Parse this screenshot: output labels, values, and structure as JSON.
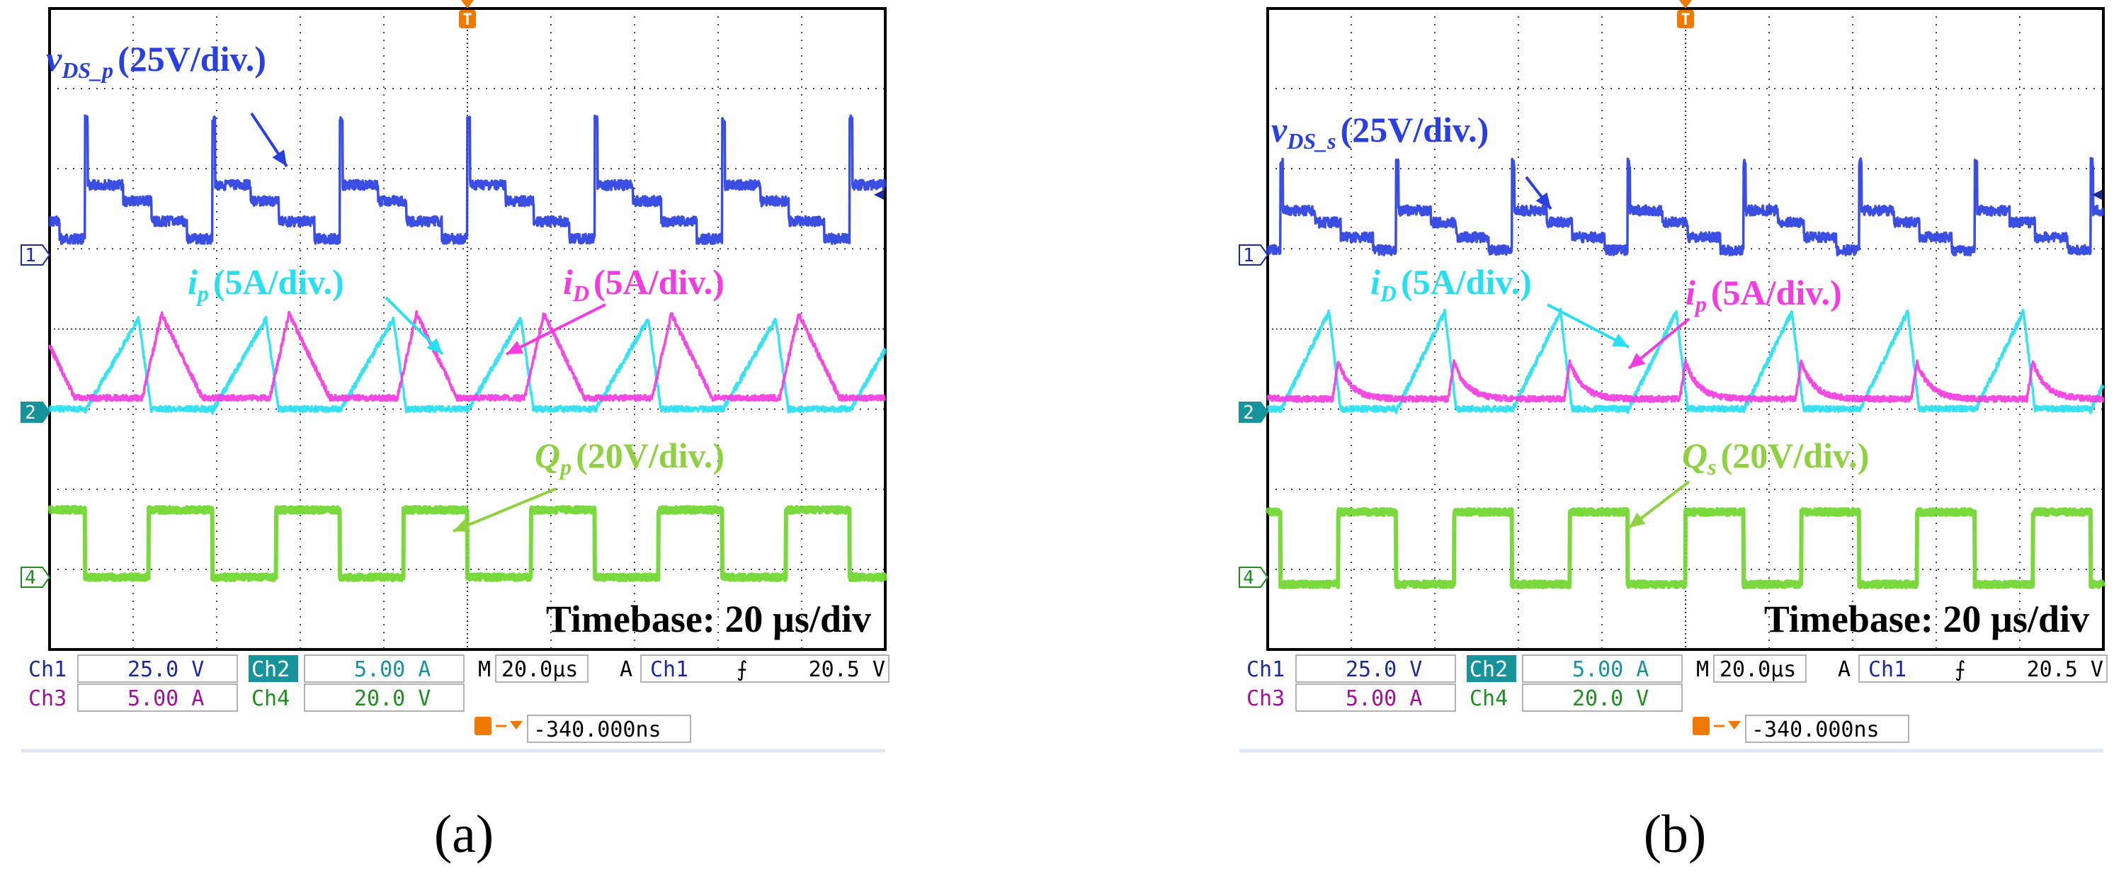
{
  "colors": {
    "ch1": "#2a3fe0",
    "ch_cyan": "#27dff0",
    "ch_magenta": "#f23be0",
    "ch4": "#6fd62c",
    "label_green": "#8fd141",
    "status_ch1": "#1d2a9c",
    "status_ch2": "#17949b",
    "status_ch3": "#a0109a",
    "status_ch4": "#1e8f1e",
    "trigger": "#f07a00",
    "grid": "#000000"
  },
  "chart_data": [
    {
      "type": "line",
      "panel_label": "(a)",
      "timebase_label": "Timebase: 20 µs/div",
      "x_axis": {
        "unit": "µs",
        "range": [
          -100,
          100
        ],
        "divisions": 10,
        "per_div": 20
      },
      "series": [
        {
          "name": "v_DS_p",
          "label_main": "v",
          "label_sub": "DS_p",
          "label_scale": "(25V/div.)",
          "channel": 1,
          "color": "#2a3fe0",
          "scale": "25V/div",
          "waveform": "drain_voltage",
          "period_us": 30.5,
          "duty": 0.5,
          "phase": 0.0
        },
        {
          "name": "i_p",
          "label_main": "i",
          "label_sub": "p",
          "label_scale": "(5A/div.)",
          "channel": 2,
          "color": "#27dff0",
          "scale": "5A/div",
          "waveform": "ramp_current",
          "period_us": 30.5,
          "duty": 0.5,
          "phase": 0.0
        },
        {
          "name": "i_D",
          "label_main": "i",
          "label_sub": "D",
          "label_scale": "(5A/div.)",
          "channel": 3,
          "color": "#f23be0",
          "scale": "5A/div",
          "waveform": "triangle_current",
          "period_us": 30.5,
          "duty": 0.5,
          "phase": 0.0
        },
        {
          "name": "Q_p",
          "label_main": "Q",
          "label_sub": "p",
          "label_scale": "(20V/div.)",
          "channel": 4,
          "color": "#6fd62c",
          "scale": "20V/div",
          "waveform": "gate_pulse",
          "period_us": 30.5,
          "duty": 0.5,
          "phase": 0.0
        }
      ],
      "status": {
        "ch1_label": "Ch1",
        "ch1_value": "25.0 V",
        "ch2_label": "Ch2",
        "ch2_value": "5.00 A",
        "ch3_label": "Ch3",
        "ch3_value": "5.00 A",
        "ch4_label": "Ch4",
        "ch4_value": "20.0 V",
        "m_label": "M",
        "m_value": "20.0µs",
        "trig_mode": "A",
        "trig_src": "Ch1",
        "trig_slope": "⨍",
        "trig_level": "20.5 V",
        "trig_offset": "-340.000ns"
      },
      "markers": {
        "ch1": "1",
        "ch2": "2",
        "ch4": "4",
        "trigger": "T"
      }
    },
    {
      "type": "line",
      "panel_label": "(b)",
      "timebase_label": "Timebase: 20 µs/div",
      "x_axis": {
        "unit": "µs",
        "range": [
          -100,
          100
        ],
        "divisions": 10,
        "per_div": 20
      },
      "series": [
        {
          "name": "v_DS_s",
          "label_main": "v",
          "label_sub": "DS_s",
          "label_scale": "(25V/div.)",
          "channel": 1,
          "color": "#2a3fe0",
          "scale": "25V/div",
          "waveform": "drain_voltage",
          "period_us": 27.7,
          "duty": 0.5,
          "phase": 0.5
        },
        {
          "name": "i_D",
          "label_main": "i",
          "label_sub": "D",
          "label_scale": "(5A/div.)",
          "channel": 2,
          "color": "#27dff0",
          "scale": "5A/div",
          "waveform": "ramp_current",
          "period_us": 27.7,
          "duty": 0.5,
          "phase": 0.5
        },
        {
          "name": "i_p",
          "label_main": "i",
          "label_sub": "p",
          "label_scale": "(5A/div.)",
          "channel": 3,
          "color": "#f23be0",
          "scale": "5A/div",
          "waveform": "decay_current",
          "period_us": 27.7,
          "duty": 0.5,
          "phase": 0.5
        },
        {
          "name": "Q_s",
          "label_main": "Q",
          "label_sub": "s",
          "label_scale": "(20V/div.)",
          "channel": 4,
          "color": "#6fd62c",
          "scale": "20V/div",
          "waveform": "gate_pulse",
          "period_us": 27.7,
          "duty": 0.5,
          "phase": 0.5
        }
      ],
      "status": {
        "ch1_label": "Ch1",
        "ch1_value": "25.0 V",
        "ch2_label": "Ch2",
        "ch2_value": "5.00 A",
        "ch3_label": "Ch3",
        "ch3_value": "5.00 A",
        "ch4_label": "Ch4",
        "ch4_value": "20.0 V",
        "m_label": "M",
        "m_value": "20.0µs",
        "trig_mode": "A",
        "trig_src": "Ch1",
        "trig_slope": "⨍",
        "trig_level": "20.5 V",
        "trig_offset": "-340.000ns"
      },
      "markers": {
        "ch1": "1",
        "ch2": "2",
        "ch4": "4",
        "trigger": "T"
      }
    }
  ]
}
